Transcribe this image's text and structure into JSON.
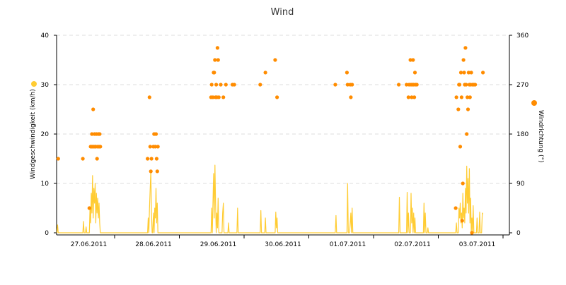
{
  "chart_data": {
    "type": "line",
    "title": "Wind",
    "x_categories": [
      "27.06.2011",
      "28.06.2011",
      "29.06.2011",
      "30.06.2011",
      "01.07.2011",
      "02.07.2011",
      "03.07.2011"
    ],
    "y_left": {
      "label": "Windgeschwindigkeit (km/h)",
      "ticks": [
        0,
        10,
        20,
        30,
        40
      ],
      "range": [
        0,
        40
      ]
    },
    "y_right": {
      "label": "Windrichtung (°)",
      "ticks": [
        0,
        90,
        180,
        270,
        360
      ],
      "range": [
        0,
        360
      ]
    },
    "grid": true,
    "series": [
      {
        "name": "Windgeschwindigkeit (km/h)",
        "type": "line",
        "axis": "left",
        "color": "#FFCC33",
        "values": [
          [
            0.0,
            0
          ],
          [
            0.01,
            1.6
          ],
          [
            0.02,
            0
          ],
          [
            0.4,
            0
          ],
          [
            0.41,
            2.3
          ],
          [
            0.42,
            0
          ],
          [
            0.44,
            0
          ],
          [
            0.45,
            1.2
          ],
          [
            0.46,
            0
          ],
          [
            0.5,
            0
          ],
          [
            0.51,
            5
          ],
          [
            0.52,
            2
          ],
          [
            0.53,
            8
          ],
          [
            0.54,
            4
          ],
          [
            0.55,
            11.6
          ],
          [
            0.56,
            3
          ],
          [
            0.57,
            9
          ],
          [
            0.58,
            6
          ],
          [
            0.59,
            10
          ],
          [
            0.6,
            2
          ],
          [
            0.61,
            8
          ],
          [
            0.62,
            4
          ],
          [
            0.63,
            7
          ],
          [
            0.64,
            3
          ],
          [
            0.65,
            6
          ],
          [
            0.66,
            2
          ],
          [
            0.67,
            0
          ],
          [
            1.4,
            0
          ],
          [
            1.41,
            3
          ],
          [
            1.42,
            0
          ],
          [
            1.43,
            5
          ],
          [
            1.44,
            9
          ],
          [
            1.45,
            12.5
          ],
          [
            1.46,
            4
          ],
          [
            1.47,
            0
          ],
          [
            1.48,
            0
          ],
          [
            1.49,
            4
          ],
          [
            1.5,
            0
          ],
          [
            1.51,
            5
          ],
          [
            1.52,
            3
          ],
          [
            1.53,
            9
          ],
          [
            1.54,
            2
          ],
          [
            1.55,
            6
          ],
          [
            1.56,
            0
          ],
          [
            2.38,
            0
          ],
          [
            2.39,
            5
          ],
          [
            2.4,
            0
          ],
          [
            2.42,
            12
          ],
          [
            2.43,
            3
          ],
          [
            2.44,
            13.7
          ],
          [
            2.45,
            6
          ],
          [
            2.46,
            0
          ],
          [
            2.47,
            4
          ],
          [
            2.48,
            1
          ],
          [
            2.49,
            7
          ],
          [
            2.5,
            0
          ],
          [
            2.55,
            0
          ],
          [
            2.56,
            4
          ],
          [
            2.57,
            6
          ],
          [
            2.58,
            0
          ],
          [
            2.64,
            0
          ],
          [
            2.65,
            2
          ],
          [
            2.66,
            0
          ],
          [
            2.78,
            0
          ],
          [
            2.79,
            5
          ],
          [
            2.8,
            0
          ],
          [
            3.14,
            0
          ],
          [
            3.15,
            4.5
          ],
          [
            3.16,
            0
          ],
          [
            3.21,
            0
          ],
          [
            3.22,
            3
          ],
          [
            3.23,
            0
          ],
          [
            3.37,
            0
          ],
          [
            3.38,
            4.2
          ],
          [
            3.39,
            1
          ],
          [
            3.4,
            3
          ],
          [
            3.41,
            0
          ],
          [
            4.3,
            0
          ],
          [
            4.31,
            3.5
          ],
          [
            4.32,
            0
          ],
          [
            4.48,
            0
          ],
          [
            4.49,
            10
          ],
          [
            4.5,
            0
          ],
          [
            4.52,
            0
          ],
          [
            4.53,
            2
          ],
          [
            4.54,
            4
          ],
          [
            4.55,
            0
          ],
          [
            4.56,
            5
          ],
          [
            4.57,
            0
          ],
          [
            5.28,
            0
          ],
          [
            5.29,
            7.2
          ],
          [
            5.3,
            0
          ],
          [
            5.4,
            0
          ],
          [
            5.41,
            8.2
          ],
          [
            5.42,
            0
          ],
          [
            5.43,
            4
          ],
          [
            5.44,
            0
          ],
          [
            5.46,
            0
          ],
          [
            5.47,
            8
          ],
          [
            5.48,
            2
          ],
          [
            5.49,
            5
          ],
          [
            5.5,
            0
          ],
          [
            5.51,
            4
          ],
          [
            5.52,
            0
          ],
          [
            5.53,
            3
          ],
          [
            5.54,
            0
          ],
          [
            5.66,
            0
          ],
          [
            5.67,
            6
          ],
          [
            5.68,
            0
          ],
          [
            5.69,
            4
          ],
          [
            5.7,
            0
          ],
          [
            5.72,
            0
          ],
          [
            5.73,
            1
          ],
          [
            5.74,
            0
          ],
          [
            6.16,
            0
          ],
          [
            6.17,
            2
          ],
          [
            6.18,
            0
          ],
          [
            6.2,
            0
          ],
          [
            6.21,
            5
          ],
          [
            6.22,
            3
          ],
          [
            6.23,
            6
          ],
          [
            6.24,
            2
          ],
          [
            6.25,
            4
          ],
          [
            6.26,
            1
          ],
          [
            6.27,
            8
          ],
          [
            6.28,
            3
          ],
          [
            6.29,
            5
          ],
          [
            6.3,
            2
          ],
          [
            6.31,
            9
          ],
          [
            6.32,
            4
          ],
          [
            6.33,
            13.5
          ],
          [
            6.34,
            6
          ],
          [
            6.35,
            11
          ],
          [
            6.36,
            4
          ],
          [
            6.37,
            13
          ],
          [
            6.38,
            2
          ],
          [
            6.39,
            7
          ],
          [
            6.4,
            0
          ],
          [
            6.41,
            3
          ],
          [
            6.42,
            0
          ],
          [
            6.43,
            5.5
          ],
          [
            6.44,
            0
          ],
          [
            6.48,
            0
          ],
          [
            6.49,
            3
          ],
          [
            6.5,
            0
          ],
          [
            6.52,
            0
          ],
          [
            6.53,
            4.2
          ],
          [
            6.54,
            0
          ],
          [
            6.56,
            0
          ],
          [
            6.57,
            4
          ],
          [
            6.58,
            3.8
          ]
        ]
      },
      {
        "name": "Windrichtung (°)",
        "type": "scatter",
        "axis": "right",
        "color": "#FF8C00",
        "points": [
          [
            0.02,
            135
          ],
          [
            0.4,
            135
          ],
          [
            0.5,
            45
          ],
          [
            0.52,
            157
          ],
          [
            0.53,
            157
          ],
          [
            0.54,
            180
          ],
          [
            0.55,
            157
          ],
          [
            0.56,
            225
          ],
          [
            0.57,
            157
          ],
          [
            0.58,
            180
          ],
          [
            0.59,
            157
          ],
          [
            0.6,
            157
          ],
          [
            0.61,
            180
          ],
          [
            0.62,
            135
          ],
          [
            0.63,
            157
          ],
          [
            0.64,
            180
          ],
          [
            0.65,
            157
          ],
          [
            0.66,
            180
          ],
          [
            0.67,
            157
          ],
          [
            1.4,
            135
          ],
          [
            1.43,
            247
          ],
          [
            1.44,
            157
          ],
          [
            1.45,
            112
          ],
          [
            1.46,
            135
          ],
          [
            1.49,
            157
          ],
          [
            1.5,
            180
          ],
          [
            1.52,
            157
          ],
          [
            1.53,
            180
          ],
          [
            1.54,
            135
          ],
          [
            1.55,
            112
          ],
          [
            1.56,
            157
          ],
          [
            2.38,
            247
          ],
          [
            2.39,
            270
          ],
          [
            2.41,
            247
          ],
          [
            2.42,
            292
          ],
          [
            2.43,
            292
          ],
          [
            2.44,
            315
          ],
          [
            2.45,
            247
          ],
          [
            2.46,
            270
          ],
          [
            2.47,
            247
          ],
          [
            2.48,
            337
          ],
          [
            2.49,
            315
          ],
          [
            2.5,
            247
          ],
          [
            2.53,
            270
          ],
          [
            2.57,
            247
          ],
          [
            2.61,
            270
          ],
          [
            2.71,
            270
          ],
          [
            2.74,
            270
          ],
          [
            3.14,
            270
          ],
          [
            3.22,
            292
          ],
          [
            3.37,
            315
          ],
          [
            3.4,
            247
          ],
          [
            4.3,
            270
          ],
          [
            4.48,
            292
          ],
          [
            4.49,
            270
          ],
          [
            4.53,
            270
          ],
          [
            4.54,
            247
          ],
          [
            4.56,
            270
          ],
          [
            5.28,
            270
          ],
          [
            5.4,
            270
          ],
          [
            5.43,
            247
          ],
          [
            5.44,
            270
          ],
          [
            5.46,
            315
          ],
          [
            5.47,
            270
          ],
          [
            5.48,
            247
          ],
          [
            5.49,
            270
          ],
          [
            5.5,
            315
          ],
          [
            5.51,
            270
          ],
          [
            5.52,
            247
          ],
          [
            5.53,
            292
          ],
          [
            5.54,
            270
          ],
          [
            5.56,
            270
          ],
          [
            6.16,
            45
          ],
          [
            6.17,
            247
          ],
          [
            6.2,
            225
          ],
          [
            6.21,
            270
          ],
          [
            6.22,
            270
          ],
          [
            6.23,
            157
          ],
          [
            6.24,
            292
          ],
          [
            6.25,
            247
          ],
          [
            6.26,
            22
          ],
          [
            6.27,
            90
          ],
          [
            6.28,
            315
          ],
          [
            6.29,
            292
          ],
          [
            6.3,
            270
          ],
          [
            6.31,
            337
          ],
          [
            6.32,
            270
          ],
          [
            6.33,
            180
          ],
          [
            6.34,
            247
          ],
          [
            6.35,
            225
          ],
          [
            6.36,
            292
          ],
          [
            6.37,
            270
          ],
          [
            6.38,
            247
          ],
          [
            6.39,
            270
          ],
          [
            6.4,
            292
          ],
          [
            6.41,
            0
          ],
          [
            6.42,
            270
          ],
          [
            6.44,
            270
          ],
          [
            6.46,
            270
          ],
          [
            6.58,
            292
          ]
        ]
      }
    ]
  }
}
